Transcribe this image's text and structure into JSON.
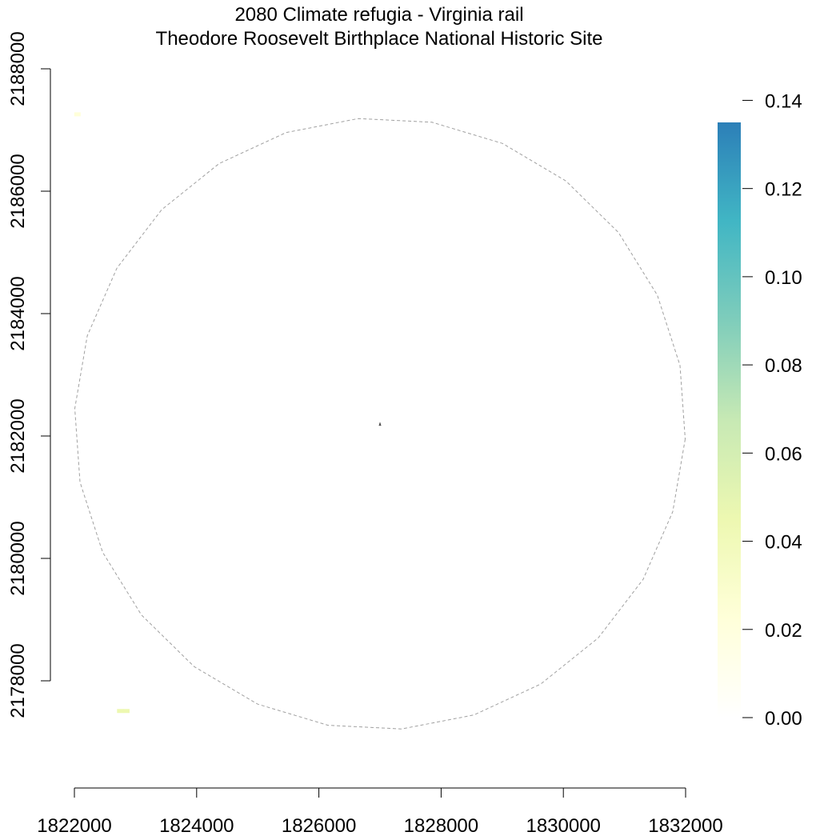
{
  "title": {
    "line1": "2080 Climate refugia - Virginia rail",
    "line2": "Theodore Roosevelt Birthplace National Historic Site"
  },
  "chart_data": {
    "type": "heatmap",
    "xlim": [
      1822000,
      1832000
    ],
    "ylim": [
      2177000,
      2188000
    ],
    "x_ticks": [
      "1822000",
      "1824000",
      "1826000",
      "1828000",
      "1830000",
      "1832000"
    ],
    "y_ticks": [
      "2178000",
      "2180000",
      "2182000",
      "2184000",
      "2186000",
      "2188000"
    ],
    "legend": {
      "position": "right",
      "min": 0.0,
      "max": 0.135,
      "ticks": [
        "0.00",
        "0.02",
        "0.04",
        "0.06",
        "0.08",
        "0.10",
        "0.12",
        "0.14"
      ],
      "colors": [
        "#ffffff",
        "#ffffd9",
        "#edf8b1",
        "#c7e9b4",
        "#7fcdbb",
        "#41b6c4",
        "#2c7fb8"
      ]
    },
    "boundary_circle": {
      "center_x": 1827000,
      "center_y": 2182200,
      "radius": 5000,
      "style": "dashed"
    },
    "cells": [
      {
        "x": 1822050,
        "y": 2187250,
        "value": 0.03
      },
      {
        "x": 1822750,
        "y": 2177500,
        "value": 0.045
      },
      {
        "x": 1822850,
        "y": 2177500,
        "value": 0.05
      }
    ],
    "site_marker": {
      "x": 1827000,
      "y": 2182200
    }
  }
}
